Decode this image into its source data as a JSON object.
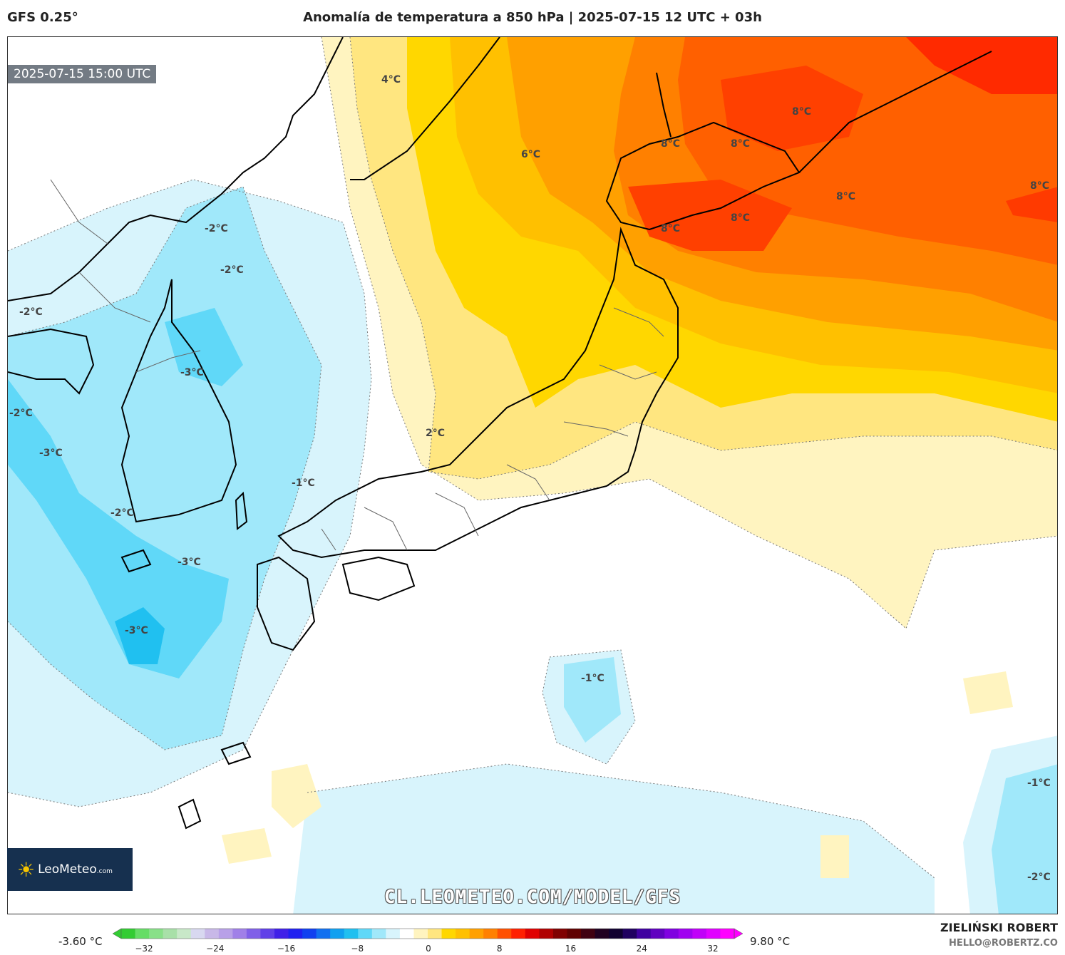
{
  "header": {
    "model": "GFS 0.25°",
    "title": "Anomalía de temperatura a 850 hPa | 2025-07-15 12 UTC + 03h"
  },
  "map": {
    "valid_time": "2025-07-15 15:00 UTC",
    "logo_text": "LeoMeteo",
    "logo_suffix": ".com",
    "watermark": "CL.LEOMETEO.COM/MODEL/GFS",
    "labels": [
      {
        "text": "4°C"
      },
      {
        "text": "6°C"
      },
      {
        "text": "8°C"
      },
      {
        "text": "8°C"
      },
      {
        "text": "8°C"
      },
      {
        "text": "8°C"
      },
      {
        "text": "8°C"
      },
      {
        "text": "8°C"
      },
      {
        "text": "8°C"
      },
      {
        "text": "-2°C"
      },
      {
        "text": "-2°C"
      },
      {
        "text": "-2°C"
      },
      {
        "text": "-3°C"
      },
      {
        "text": "-2°C"
      },
      {
        "text": "-3°C"
      },
      {
        "text": "2°C"
      },
      {
        "text": "-1°C"
      },
      {
        "text": "-2°C"
      },
      {
        "text": "-3°C"
      },
      {
        "text": "-3°C"
      },
      {
        "text": "-1°C"
      },
      {
        "text": "-1°C"
      },
      {
        "text": "-2°C"
      }
    ]
  },
  "colorbar": {
    "min_label": "-3.60 °C",
    "max_label": "9.80 °C",
    "ticks": [
      "−32",
      "−24",
      "−16",
      "−8",
      "0",
      "8",
      "16",
      "24",
      "32"
    ],
    "colors": [
      "#33cc33",
      "#66dd66",
      "#88e088",
      "#a8e0a8",
      "#c8e8c8",
      "#d8d8f0",
      "#c8b8e8",
      "#b8a0e8",
      "#a080e8",
      "#8060e8",
      "#6040e8",
      "#4020e8",
      "#2020f0",
      "#1040f0",
      "#1070f0",
      "#10a0f0",
      "#20c0f0",
      "#60d8f8",
      "#a0e8fa",
      "#d8f4fc",
      "#ffffff",
      "#fff4c0",
      "#ffe680",
      "#ffd700",
      "#ffc000",
      "#ffa000",
      "#ff8000",
      "#ff5000",
      "#ff2000",
      "#e00000",
      "#b00000",
      "#800000",
      "#600000",
      "#400010",
      "#200020",
      "#100030",
      "#200060",
      "#4000a0",
      "#6000c0",
      "#8000e0",
      "#a000f0",
      "#c000f8",
      "#e000ff",
      "#ff00ff"
    ]
  },
  "credits": {
    "author": "ZIELIŃSKI ROBERT",
    "email": "HELLO@ROBERTZ.CO"
  }
}
